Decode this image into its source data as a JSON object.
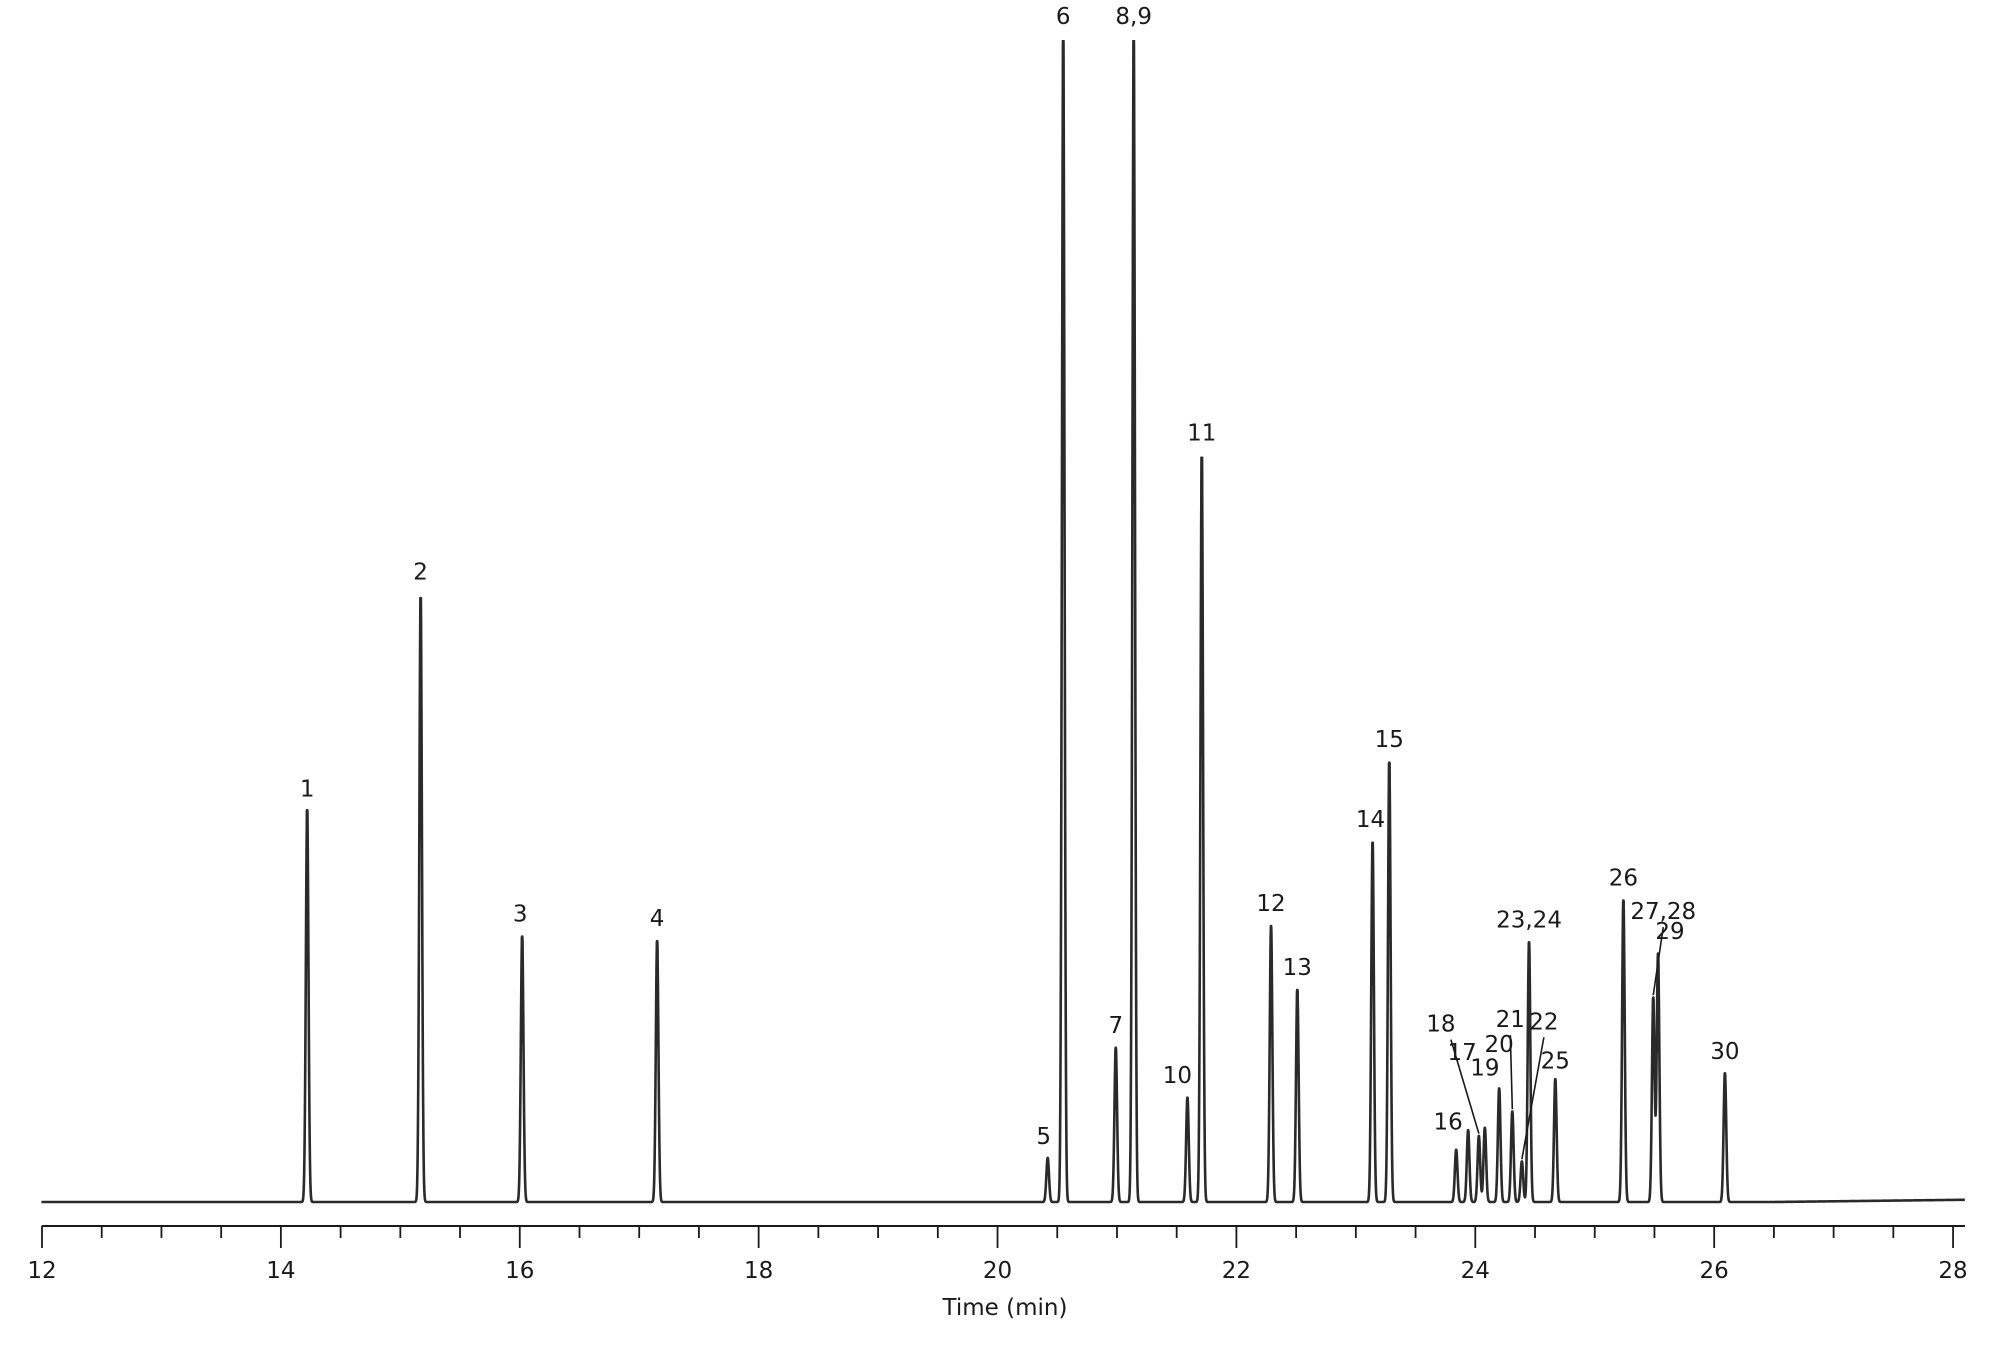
{
  "chart_data": {
    "type": "line",
    "title": "",
    "xlabel": "Time (min)",
    "ylabel": "",
    "xlim": [
      12,
      28.1
    ],
    "ylim": [
      0,
      100
    ],
    "grid": false,
    "x_ticks": [
      12,
      14,
      16,
      18,
      20,
      22,
      24,
      26,
      28
    ],
    "x_minor_step": 0.5,
    "line_color": "#2a2a2a",
    "series": [
      {
        "peaks": [
          {
            "label": "1",
            "rt": 14.22,
            "height": 33.8
          },
          {
            "label": "2",
            "rt": 15.17,
            "height": 52.1
          },
          {
            "label": "3",
            "rt": 16.02,
            "height": 22.9
          },
          {
            "label": "4",
            "rt": 17.15,
            "height": 22.5
          },
          {
            "label": "5",
            "rt": 20.42,
            "height": 3.8
          },
          {
            "label": "6",
            "rt": 20.55,
            "height": 100.0
          },
          {
            "label": "7",
            "rt": 20.99,
            "height": 13.3
          },
          {
            "label": "8,9",
            "rt": 21.14,
            "height": 100.0
          },
          {
            "label": "10",
            "rt": 21.59,
            "height": 9.0
          },
          {
            "label": "11",
            "rt": 21.71,
            "height": 64.2
          },
          {
            "label": "12",
            "rt": 22.29,
            "height": 23.8
          },
          {
            "label": "13",
            "rt": 22.51,
            "height": 18.3
          },
          {
            "label": "14",
            "rt": 23.14,
            "height": 31.0
          },
          {
            "label": "15",
            "rt": 23.28,
            "height": 37.9
          },
          {
            "label": "16",
            "rt": 23.84,
            "height": 4.5
          },
          {
            "label": "17",
            "rt": 23.94,
            "height": 6.2
          },
          {
            "label": "18",
            "rt": 24.03,
            "height": 5.7
          },
          {
            "label": "19",
            "rt": 24.08,
            "height": 6.4
          },
          {
            "label": "20",
            "rt": 24.2,
            "height": 9.8
          },
          {
            "label": "21",
            "rt": 24.31,
            "height": 7.8
          },
          {
            "label": "22",
            "rt": 24.39,
            "height": 3.5
          },
          {
            "label": "23,24",
            "rt": 24.45,
            "height": 22.4
          },
          {
            "label": "25",
            "rt": 24.67,
            "height": 10.6
          },
          {
            "label": "26",
            "rt": 25.24,
            "height": 26.0
          },
          {
            "label": "27,28",
            "rt": 25.49,
            "height": 17.6
          },
          {
            "label": "29",
            "rt": 25.53,
            "height": 21.4
          },
          {
            "label": "30",
            "rt": 26.09,
            "height": 11.1
          }
        ]
      }
    ]
  }
}
